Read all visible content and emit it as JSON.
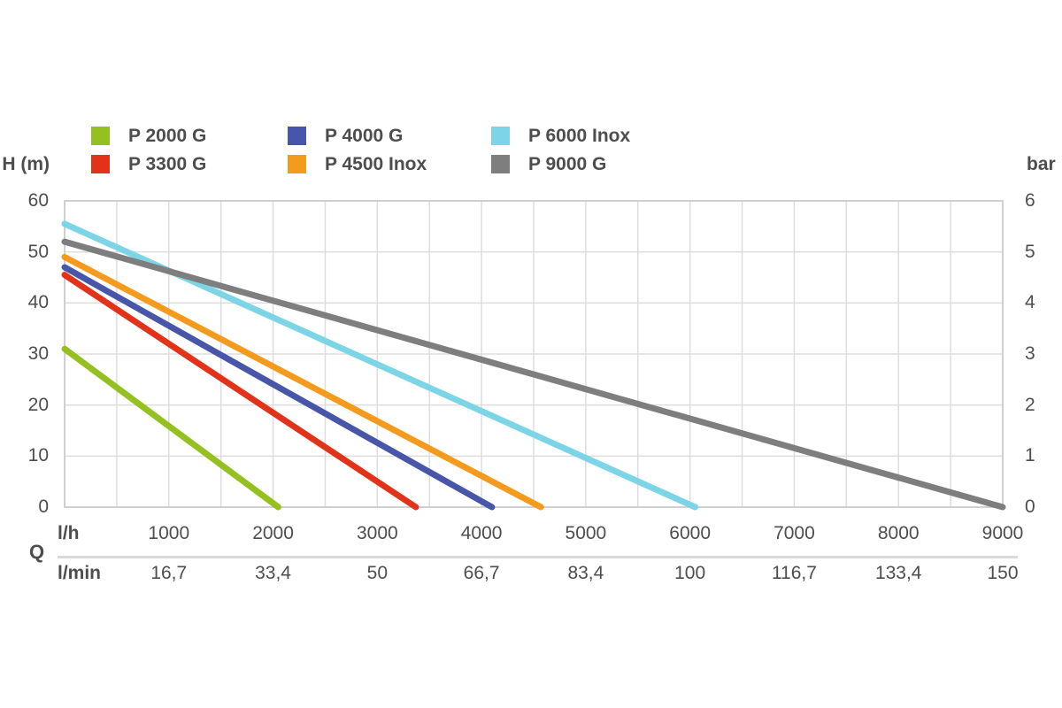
{
  "axes": {
    "left_label": "H (m)",
    "right_label": "bar",
    "q_label": "Q",
    "flow_unit_hour": "l/h",
    "flow_unit_min": "l/min"
  },
  "colors": {
    "background": "#ffffff",
    "text": "#4d4d4d",
    "grid": "#dddddd",
    "plot_border": "#d0d0d0",
    "divider": "#d9d9d9"
  },
  "chart_data": {
    "type": "line",
    "title": "",
    "xlabel": "Q",
    "x_units": [
      "l/h",
      "l/min"
    ],
    "ylabel_left": "H (m)",
    "ylabel_right": "bar",
    "xlim": [
      0,
      9000
    ],
    "ylim_left": [
      0,
      60
    ],
    "ylim_right": [
      0,
      6
    ],
    "grid": true,
    "x_grid_step": 500,
    "y_grid_step": 10,
    "legend_position": "top",
    "x_ticks_lh": [
      1000,
      2000,
      3000,
      4000,
      5000,
      6000,
      7000,
      8000,
      9000
    ],
    "x_ticks_lmin": [
      "16,7",
      "33,4",
      "50",
      "66,7",
      "83,4",
      "100",
      "116,7",
      "133,4",
      "150"
    ],
    "y_ticks_left": [
      60,
      50,
      40,
      30,
      20,
      10,
      0
    ],
    "y_ticks_right": [
      6,
      5,
      4,
      3,
      2,
      1,
      0
    ],
    "series": [
      {
        "name": "P 2000 G",
        "color": "#94c11f",
        "points_lh_m": [
          [
            0,
            31.0
          ],
          [
            2050,
            0
          ]
        ]
      },
      {
        "name": "P 3300 G",
        "color": "#e2321a",
        "points_lh_m": [
          [
            0,
            45.5
          ],
          [
            3370,
            0
          ]
        ]
      },
      {
        "name": "P 4000 G",
        "color": "#4756a9",
        "points_lh_m": [
          [
            0,
            47.0
          ],
          [
            4100,
            0
          ]
        ]
      },
      {
        "name": "P 4500 Inox",
        "color": "#f49b1d",
        "points_lh_m": [
          [
            0,
            49.0
          ],
          [
            4570,
            0
          ]
        ]
      },
      {
        "name": "P 6000 Inox",
        "color": "#7cd5e6",
        "points_lh_m": [
          [
            0,
            55.5
          ],
          [
            6050,
            0
          ]
        ]
      },
      {
        "name": "P 9000 G",
        "color": "#7e7e7e",
        "points_lh_m": [
          [
            0,
            52.0
          ],
          [
            9000,
            0
          ]
        ]
      }
    ]
  }
}
